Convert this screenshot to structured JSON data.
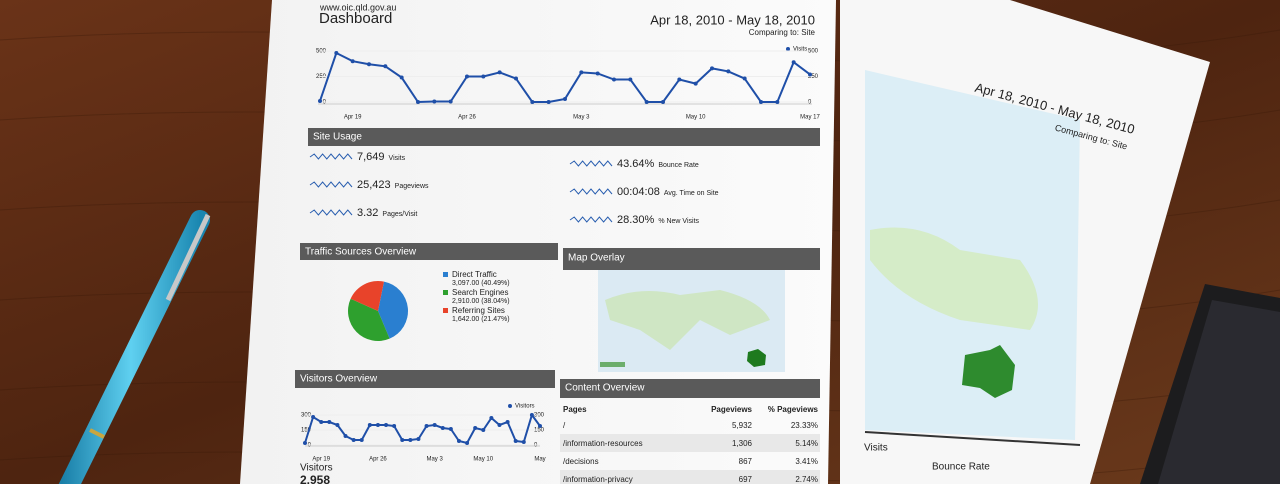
{
  "header": {
    "url": "www.oic.qld.gov.au",
    "title": "Dashboard",
    "date_range": "Apr 18, 2010 - May 18, 2010",
    "comparing": "Comparing to: Site"
  },
  "visits_chart": {
    "legend": "Visits",
    "ylim": [
      0,
      500
    ],
    "yticks": [
      0,
      250,
      500
    ],
    "x_labels": [
      "Apr 19",
      "Apr 26",
      "May 3",
      "May 10",
      "May 17"
    ],
    "values": [
      10,
      480,
      400,
      370,
      350,
      240,
      0,
      5,
      5,
      250,
      250,
      290,
      230,
      0,
      0,
      30,
      290,
      280,
      220,
      220,
      0,
      0,
      220,
      180,
      330,
      300,
      230,
      0,
      0,
      390,
      270
    ]
  },
  "site_usage": {
    "title": "Site Usage",
    "metrics": [
      {
        "value": "7,649",
        "label": "Visits"
      },
      {
        "value": "25,423",
        "label": "Pageviews"
      },
      {
        "value": "3.32",
        "label": "Pages/Visit"
      },
      {
        "value": "43.64%",
        "label": "Bounce Rate"
      },
      {
        "value": "00:04:08",
        "label": "Avg. Time on Site"
      },
      {
        "value": "28.30%",
        "label": "% New Visits"
      }
    ]
  },
  "traffic_sources": {
    "title": "Traffic Sources Overview",
    "slices": [
      {
        "name": "Direct Traffic",
        "value": 3097,
        "label": "3,097.00 (40.49%)",
        "color": "#2a7fd0"
      },
      {
        "name": "Search Engines",
        "value": 2910,
        "label": "2,910.00 (38.04%)",
        "color": "#2ea02e"
      },
      {
        "name": "Referring Sites",
        "value": 1642,
        "label": "1,642.00 (21.47%)",
        "color": "#e8432a"
      }
    ]
  },
  "map_overlay": {
    "title": "Map Overlay"
  },
  "visitors_overview": {
    "title": "Visitors Overview",
    "legend": "Visitors",
    "ylim": [
      0,
      300
    ],
    "yticks": [
      0,
      150,
      300
    ],
    "x_labels": [
      "Apr 19",
      "Apr 26",
      "May 3",
      "May 10",
      "May"
    ],
    "values": [
      20,
      280,
      230,
      230,
      200,
      90,
      50,
      50,
      200,
      200,
      200,
      190,
      50,
      50,
      60,
      190,
      200,
      170,
      160,
      40,
      20,
      170,
      150,
      270,
      200,
      230,
      40,
      30,
      300,
      190
    ],
    "total_label": "Visitors",
    "total": "2,958"
  },
  "content_overview": {
    "title": "Content Overview",
    "columns": [
      "Pages",
      "Pageviews",
      "% Pageviews"
    ],
    "rows": [
      [
        "/",
        "5,932",
        "23.33%"
      ],
      [
        "/information-resources",
        "1,306",
        "5.14%"
      ],
      [
        "/decisions",
        "867",
        "3.41%"
      ],
      [
        "/information-privacy",
        "697",
        "2.74%"
      ]
    ]
  },
  "second_page": {
    "date_range": "Apr 18, 2010 - May 18, 2010",
    "comparing": "Comparing to: Site",
    "visits": "Visits",
    "bounce_rate": "Bounce Rate"
  }
}
